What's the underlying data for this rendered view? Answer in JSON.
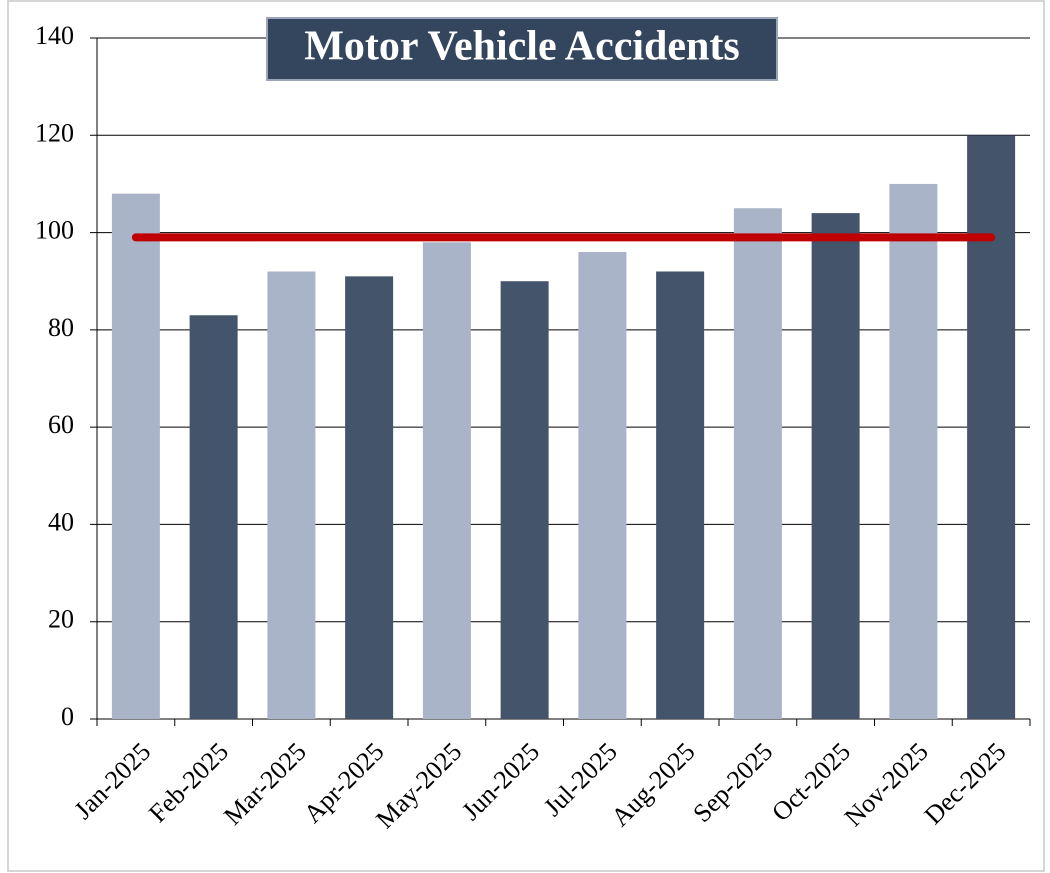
{
  "chart_data": {
    "type": "bar",
    "title": "Motor Vehicle Accidents",
    "categories": [
      "Jan-2025",
      "Feb-2025",
      "Mar-2025",
      "Apr-2025",
      "May-2025",
      "Jun-2025",
      "Jul-2025",
      "Aug-2025",
      "Sep-2025",
      "Oct-2025",
      "Nov-2025",
      "Dec-2025"
    ],
    "values": [
      108,
      83,
      92,
      91,
      98,
      90,
      96,
      92,
      105,
      104,
      110,
      120
    ],
    "colors": [
      "#aab4c8",
      "#44546a",
      "#aab4c8",
      "#44546a",
      "#aab4c8",
      "#44546a",
      "#aab4c8",
      "#44546a",
      "#aab4c8",
      "#44546a",
      "#aab4c8",
      "#44546a"
    ],
    "reference_line": {
      "value": 99,
      "color": "#c00000"
    },
    "ylim": [
      0,
      140
    ],
    "yticks": [
      0,
      20,
      40,
      60,
      80,
      100,
      120,
      140
    ],
    "grid": true
  }
}
